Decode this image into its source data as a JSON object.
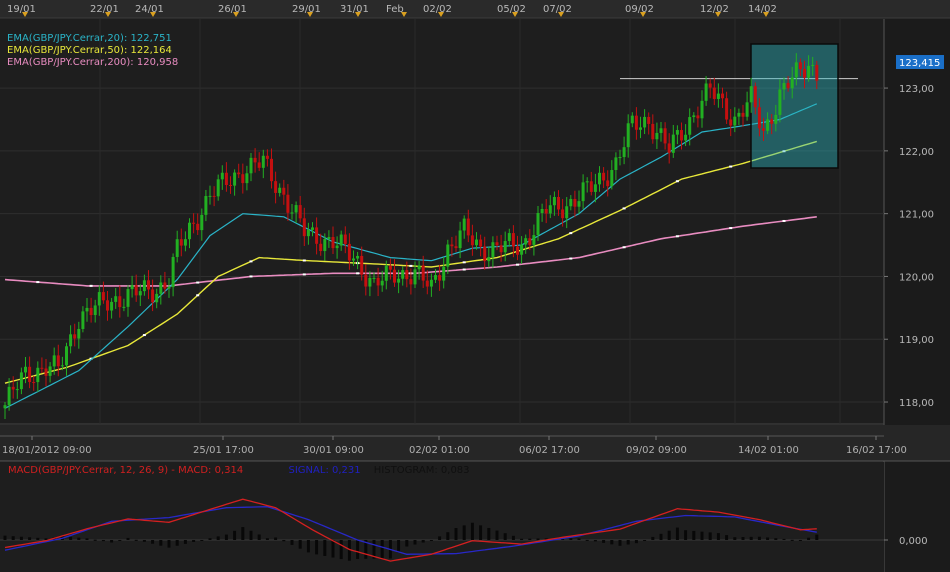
{
  "chart_data": [
    {
      "type": "candlestick",
      "symbol": "GBP/JPY",
      "top_date_labels": [
        "19/01",
        "22/01",
        "24/01",
        "26/01",
        "29/01",
        "31/01",
        "Feb",
        "02/02",
        "05/02",
        "07/02",
        "09/02",
        "12/02",
        "14/02"
      ],
      "bottom_time_labels": [
        "18/01/2012 09:00",
        "25/01 17:00",
        "30/01 09:00",
        "02/02 01:00",
        "06/02 17:00",
        "09/02 09:00",
        "14/02 01:00",
        "16/02 17:00"
      ],
      "y_tick_labels": [
        "118,00",
        "119,00",
        "120,00",
        "121,00",
        "122,00",
        "123,00"
      ],
      "ylim": [
        117.65,
        124.1
      ],
      "last_price_label": "123,415",
      "last_price": 123.415,
      "resistance_level": 123.15,
      "legend": [
        {
          "text": "EMA(GBP/JPY.Cerrar,20): 122,751",
          "color": "#2ab4c8"
        },
        {
          "text": "EMA(GBP/JPY.Cerrar,50): 122,164",
          "color": "#e8e83a"
        },
        {
          "text": "EMA(GBP/JPY.Cerrar,200): 120,958",
          "color": "#e88cc0"
        }
      ],
      "colors": {
        "up": "#22b022",
        "down": "#c41010",
        "ema20": "#2ab4c8",
        "ema50": "#e8e83a",
        "ema200": "#e88cc0"
      },
      "candle_keypoints": [
        [
          0,
          117.95
        ],
        [
          5,
          118.45
        ],
        [
          10,
          118.55
        ],
        [
          13,
          118.5
        ],
        [
          18,
          119.35
        ],
        [
          25,
          119.6
        ],
        [
          30,
          119.7
        ],
        [
          37,
          119.8
        ],
        [
          40,
          119.95
        ],
        [
          42,
          120.4
        ],
        [
          50,
          121.3
        ],
        [
          58,
          121.7
        ],
        [
          63,
          121.8
        ],
        [
          68,
          121.3
        ],
        [
          73,
          120.7
        ],
        [
          80,
          120.55
        ],
        [
          86,
          120.25
        ],
        [
          90,
          119.85
        ],
        [
          95,
          120.05
        ],
        [
          100,
          120.05
        ],
        [
          104,
          119.8
        ],
        [
          108,
          120.45
        ],
        [
          112,
          120.7
        ],
        [
          116,
          120.45
        ],
        [
          120,
          120.45
        ],
        [
          126,
          120.5
        ],
        [
          132,
          121.05
        ],
        [
          137,
          121.15
        ],
        [
          143,
          121.4
        ],
        [
          149,
          121.8
        ],
        [
          153,
          122.4
        ],
        [
          157,
          122.5
        ],
        [
          162,
          122.0
        ],
        [
          168,
          122.6
        ],
        [
          172,
          122.95
        ],
        [
          175,
          122.75
        ],
        [
          178,
          122.5
        ],
        [
          182,
          122.8
        ],
        [
          185,
          122.3
        ],
        [
          189,
          122.9
        ],
        [
          193,
          123.2
        ],
        [
          196,
          123.4
        ],
        [
          198,
          123.25
        ]
      ],
      "ema20_keypoints": [
        [
          0,
          117.9
        ],
        [
          18,
          118.5
        ],
        [
          30,
          119.2
        ],
        [
          42,
          119.95
        ],
        [
          50,
          120.65
        ],
        [
          58,
          121.0
        ],
        [
          68,
          120.95
        ],
        [
          80,
          120.55
        ],
        [
          94,
          120.3
        ],
        [
          104,
          120.25
        ],
        [
          114,
          120.45
        ],
        [
          126,
          120.5
        ],
        [
          140,
          121.0
        ],
        [
          150,
          121.55
        ],
        [
          160,
          121.9
        ],
        [
          170,
          122.3
        ],
        [
          180,
          122.4
        ],
        [
          189,
          122.5
        ],
        [
          198,
          122.75
        ]
      ],
      "ema50_keypoints": [
        [
          0,
          118.3
        ],
        [
          15,
          118.55
        ],
        [
          30,
          118.9
        ],
        [
          42,
          119.4
        ],
        [
          52,
          120.0
        ],
        [
          62,
          120.3
        ],
        [
          74,
          120.25
        ],
        [
          90,
          120.2
        ],
        [
          104,
          120.15
        ],
        [
          120,
          120.3
        ],
        [
          135,
          120.6
        ],
        [
          150,
          121.05
        ],
        [
          165,
          121.55
        ],
        [
          180,
          121.8
        ],
        [
          198,
          122.15
        ]
      ],
      "ema200_keypoints": [
        [
          0,
          119.95
        ],
        [
          20,
          119.85
        ],
        [
          40,
          119.85
        ],
        [
          60,
          120.0
        ],
        [
          80,
          120.05
        ],
        [
          100,
          120.05
        ],
        [
          120,
          120.15
        ],
        [
          140,
          120.3
        ],
        [
          160,
          120.6
        ],
        [
          180,
          120.8
        ],
        [
          198,
          120.95
        ]
      ],
      "bars": 199
    },
    {
      "type": "macd",
      "title_parts": [
        {
          "text": "MACD(GBP/JPY.Cerrar, 12, 26, 9) - MACD: 0,314",
          "color": "#d02020"
        },
        {
          "text": "SIGNAL: 0,231",
          "color": "#2020c0"
        },
        {
          "text": "HISTOGRAM: 0,083",
          "color": "#101010"
        }
      ],
      "y_tick_labels": [
        "0,000"
      ],
      "colors": {
        "macd": "#d42020",
        "signal": "#2828c8",
        "histogram": "#080808"
      },
      "macd_keypoints": [
        [
          0,
          -0.22
        ],
        [
          10,
          -0.02
        ],
        [
          20,
          0.33
        ],
        [
          30,
          0.62
        ],
        [
          40,
          0.52
        ],
        [
          50,
          0.9
        ],
        [
          58,
          1.2
        ],
        [
          66,
          0.95
        ],
        [
          75,
          0.3
        ],
        [
          84,
          -0.28
        ],
        [
          94,
          -0.62
        ],
        [
          104,
          -0.42
        ],
        [
          114,
          -0.02
        ],
        [
          126,
          -0.12
        ],
        [
          136,
          0.08
        ],
        [
          150,
          0.32
        ],
        [
          164,
          0.92
        ],
        [
          174,
          0.82
        ],
        [
          184,
          0.6
        ],
        [
          194,
          0.3
        ],
        [
          198,
          0.33
        ]
      ],
      "signal_keypoints": [
        [
          0,
          -0.3
        ],
        [
          14,
          0.05
        ],
        [
          26,
          0.55
        ],
        [
          40,
          0.66
        ],
        [
          54,
          0.95
        ],
        [
          64,
          0.98
        ],
        [
          74,
          0.6
        ],
        [
          86,
          0.0
        ],
        [
          98,
          -0.42
        ],
        [
          110,
          -0.4
        ],
        [
          124,
          -0.18
        ],
        [
          140,
          0.12
        ],
        [
          154,
          0.55
        ],
        [
          166,
          0.72
        ],
        [
          178,
          0.68
        ],
        [
          190,
          0.4
        ],
        [
          198,
          0.23
        ]
      ]
    }
  ]
}
